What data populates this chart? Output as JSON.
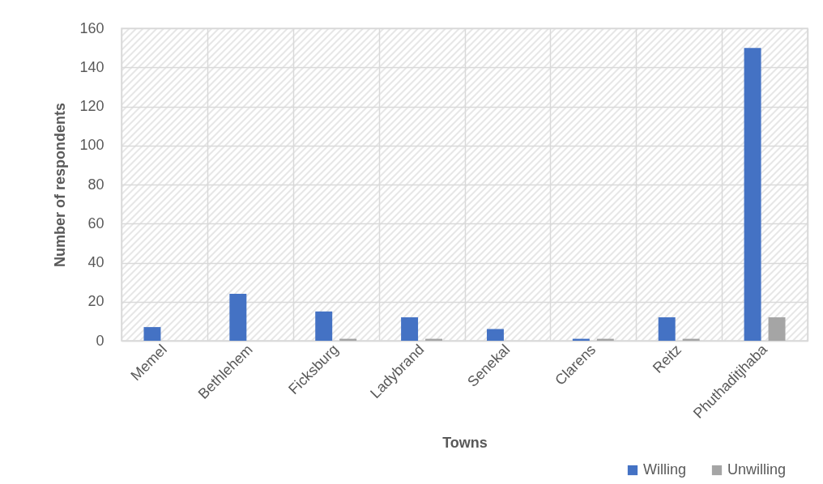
{
  "chart_data": {
    "type": "bar",
    "xlabel": "Towns",
    "ylabel": "Number of respondents",
    "categories": [
      "Memel",
      "Bethlehem",
      "Ficksburg",
      "Ladybrand",
      "Senekal",
      "Clarens",
      "Reitz",
      "Phuthaditjhaba"
    ],
    "series": [
      {
        "name": "Willing",
        "color": "#4472c4",
        "values": [
          7,
          24,
          15,
          12,
          6,
          1,
          12,
          150
        ]
      },
      {
        "name": "Unwilling",
        "color": "#a5a5a5",
        "values": [
          0,
          0,
          1,
          1,
          0,
          1,
          1,
          12
        ]
      }
    ],
    "ylim": [
      0,
      160
    ],
    "yticks": [
      0,
      20,
      40,
      60,
      80,
      100,
      120,
      140,
      160
    ],
    "grid": true,
    "legend": "bottom right"
  }
}
